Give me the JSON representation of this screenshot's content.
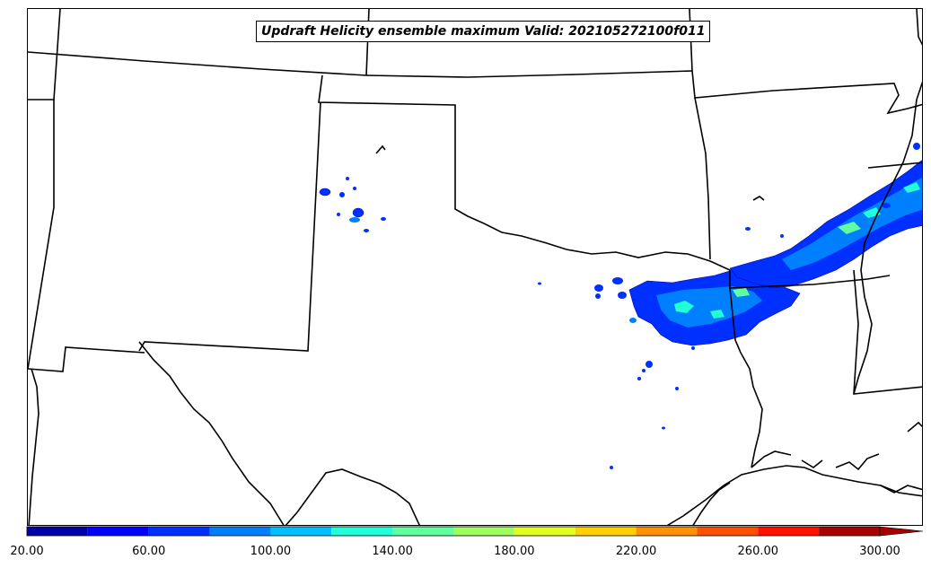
{
  "title": "Updraft Helicity ensemble maximum Valid: 202105272100f011",
  "colorbar": {
    "levels": [
      20,
      40,
      60,
      80,
      100,
      120,
      140,
      160,
      180,
      200,
      220,
      240,
      260,
      280,
      300
    ],
    "colors": [
      "#0000a8",
      "#0000ff",
      "#0030ff",
      "#0080ff",
      "#00c0ff",
      "#20ffd8",
      "#60ffa0",
      "#a0ff60",
      "#e0ff20",
      "#ffd000",
      "#ff9000",
      "#ff5000",
      "#ff1000",
      "#a80000"
    ],
    "extend_color": "#a80000",
    "extend": "max",
    "tick_labels": [
      "20.00",
      "60.00",
      "100.00",
      "140.00",
      "180.00",
      "220.00",
      "260.00",
      "300.00"
    ]
  },
  "map": {
    "background": "#ffffff",
    "boundary_color": "#000000",
    "field": "updraft helicity ensemble maximum"
  }
}
